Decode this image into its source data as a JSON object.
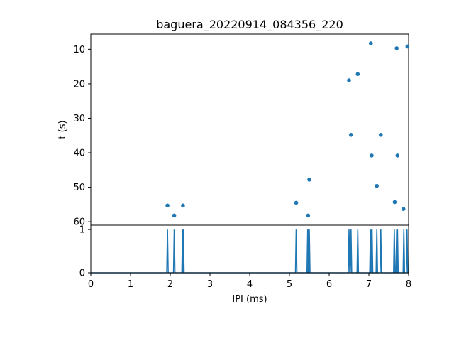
{
  "chart_data": [
    {
      "type": "scatter",
      "title": "baguera_20220914_084356_220",
      "xlabel": "",
      "ylabel": "t (s)",
      "xlim": [
        0,
        8
      ],
      "ylim": [
        61,
        5.6
      ],
      "y_inverted": true,
      "yticks": [
        10,
        20,
        30,
        40,
        50,
        60
      ],
      "marker_color": "#1f77b4",
      "grid": false,
      "points": [
        {
          "x": 7.05,
          "y": 8.3
        },
        {
          "x": 7.7,
          "y": 9.7
        },
        {
          "x": 7.97,
          "y": 9.2
        },
        {
          "x": 6.72,
          "y": 17.2
        },
        {
          "x": 6.5,
          "y": 19.0
        },
        {
          "x": 6.55,
          "y": 34.8
        },
        {
          "x": 7.3,
          "y": 34.8
        },
        {
          "x": 7.07,
          "y": 40.8
        },
        {
          "x": 7.72,
          "y": 40.8
        },
        {
          "x": 5.5,
          "y": 47.8
        },
        {
          "x": 7.2,
          "y": 49.6
        },
        {
          "x": 5.17,
          "y": 54.5
        },
        {
          "x": 7.65,
          "y": 54.3
        },
        {
          "x": 1.93,
          "y": 55.3
        },
        {
          "x": 2.32,
          "y": 55.3
        },
        {
          "x": 7.87,
          "y": 56.3
        },
        {
          "x": 2.1,
          "y": 58.2
        },
        {
          "x": 5.47,
          "y": 58.2
        }
      ]
    },
    {
      "type": "line",
      "title": "",
      "xlabel": "IPI (ms)",
      "ylabel": "",
      "xlim": [
        0,
        8
      ],
      "ylim": [
        0,
        1.1
      ],
      "xticks": [
        0,
        1,
        2,
        3,
        4,
        5,
        6,
        7,
        8
      ],
      "yticks": [
        0,
        1
      ],
      "line_color": "#1f77b4",
      "grid": false,
      "baseline": 0,
      "spike_height": 1,
      "spike_positions": [
        1.93,
        2.1,
        2.31,
        2.33,
        5.17,
        5.46,
        5.48,
        5.5,
        6.5,
        6.55,
        6.72,
        7.04,
        7.06,
        7.08,
        7.2,
        7.3,
        7.64,
        7.7,
        7.72,
        7.88,
        7.96
      ]
    }
  ]
}
